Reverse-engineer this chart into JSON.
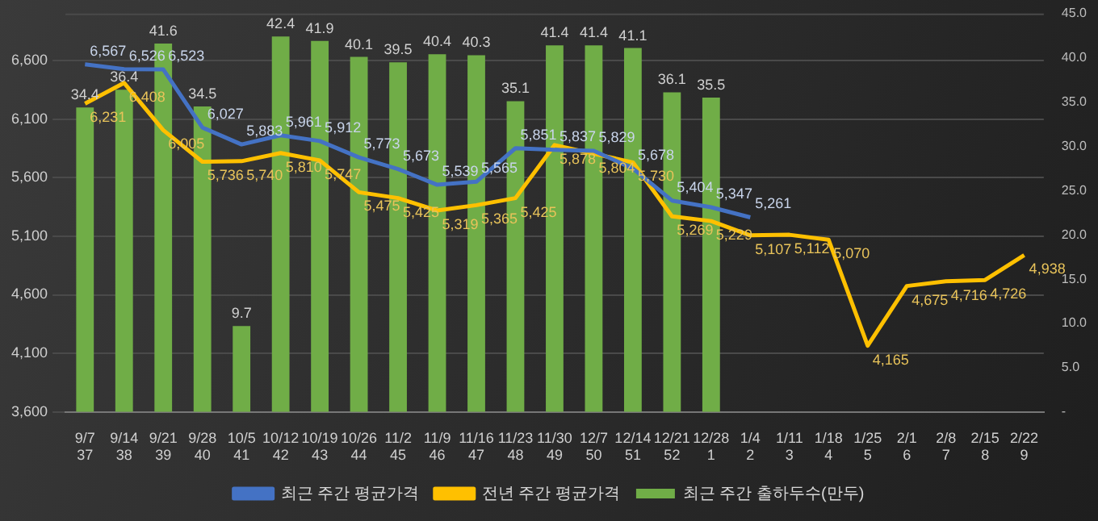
{
  "chart_data": {
    "type": "bar",
    "categories": [
      "9/7\n37",
      "9/14\n38",
      "9/21\n39",
      "9/28\n40",
      "10/5\n41",
      "10/12\n42",
      "10/19\n43",
      "10/26\n44",
      "11/2\n45",
      "11/9\n46",
      "11/16\n47",
      "11/23\n48",
      "11/30\n49",
      "12/7\n50",
      "12/14\n51",
      "12/21\n52",
      "12/28\n1",
      "1/4\n2",
      "1/11\n3",
      "1/18\n4",
      "1/25\n5",
      "2/1\n6",
      "2/8\n7",
      "2/15\n8",
      "2/22\n9"
    ],
    "series": [
      {
        "name": "최근 주간 출하두수(만두)",
        "axis": "y2",
        "color": "#70ad47",
        "values": [
          34.4,
          36.4,
          41.6,
          34.5,
          9.7,
          42.4,
          41.9,
          40.1,
          39.5,
          40.4,
          40.3,
          35.1,
          41.4,
          41.4,
          41.1,
          36.1,
          35.5,
          null,
          null,
          null,
          null,
          null,
          null,
          null,
          null
        ],
        "value_labels": [
          "34.4",
          "36.4",
          "41.6",
          "34.5",
          "9.7",
          "42.4",
          "41.9",
          "40.1",
          "39.5",
          "40.4",
          "40.3",
          "35.1",
          "41.4",
          "41.4",
          "41.1",
          "36.1",
          "35.5",
          null,
          null,
          null,
          null,
          null,
          null,
          null,
          null
        ]
      },
      {
        "name": "최근 주간 평균가격",
        "type": "line",
        "color": "#4472c4",
        "values": [
          6567,
          6526,
          6523,
          6027,
          5883,
          5961,
          5912,
          5773,
          5673,
          5539,
          5565,
          5851,
          5837,
          5829,
          5678,
          5404,
          5347,
          5261,
          null,
          null,
          null,
          null,
          null,
          null,
          null
        ],
        "value_labels": [
          "6,567",
          "6,526",
          "6,523",
          "6,027",
          "5,883",
          "5,961",
          "5,912",
          "5,773",
          "5,673",
          "5,539",
          "5,565",
          "5,851",
          "5,837",
          "5,829",
          "5,678",
          "5,404",
          "5,347",
          "5,261",
          null,
          null,
          null,
          null,
          null,
          null,
          null
        ]
      },
      {
        "name": "전년 주간 평균가격",
        "type": "line",
        "color": "#ffc000",
        "values": [
          6231,
          6408,
          6005,
          5736,
          5740,
          5810,
          5747,
          5475,
          5425,
          5319,
          5365,
          5425,
          5878,
          5804,
          5730,
          5269,
          5229,
          5107,
          5112,
          5070,
          4165,
          4675,
          4716,
          4726,
          4938
        ],
        "value_labels": [
          "6,231",
          "6,408",
          "6,005",
          "5,736",
          "5,740",
          "5,810",
          "5,747",
          "5,475",
          "5,425",
          "5,319",
          "5,365",
          "5,425",
          "5,878",
          "5,804",
          "5,730",
          "5,269",
          "5,229",
          "5,107",
          "5,112",
          "5,070",
          "4,165",
          "4,675",
          "4,716",
          "4,726",
          "4,938"
        ]
      }
    ],
    "ylim": [
      3600,
      7000
    ],
    "yticks": [
      {
        "value": 3600,
        "label": "3,600"
      },
      {
        "value": 4100,
        "label": "4,100"
      },
      {
        "value": 4600,
        "label": "4,600"
      },
      {
        "value": 5100,
        "label": "5,100"
      },
      {
        "value": 5600,
        "label": "5,600"
      },
      {
        "value": 6100,
        "label": "6,100"
      },
      {
        "value": 6600,
        "label": "6,600"
      }
    ],
    "y2lim": [
      0,
      45
    ],
    "y2ticks": [
      {
        "value": 0,
        "label": "-"
      },
      {
        "value": 5,
        "label": "5.0"
      },
      {
        "value": 10,
        "label": "10.0"
      },
      {
        "value": 15,
        "label": "15.0"
      },
      {
        "value": 20,
        "label": "20.0"
      },
      {
        "value": 25,
        "label": "25.0"
      },
      {
        "value": 30,
        "label": "30.0"
      },
      {
        "value": 35,
        "label": "35.0"
      },
      {
        "value": 40,
        "label": "40.0"
      },
      {
        "value": 45,
        "label": "45.0"
      }
    ],
    "grid": "y",
    "legend": "bottom",
    "marker": "none"
  }
}
